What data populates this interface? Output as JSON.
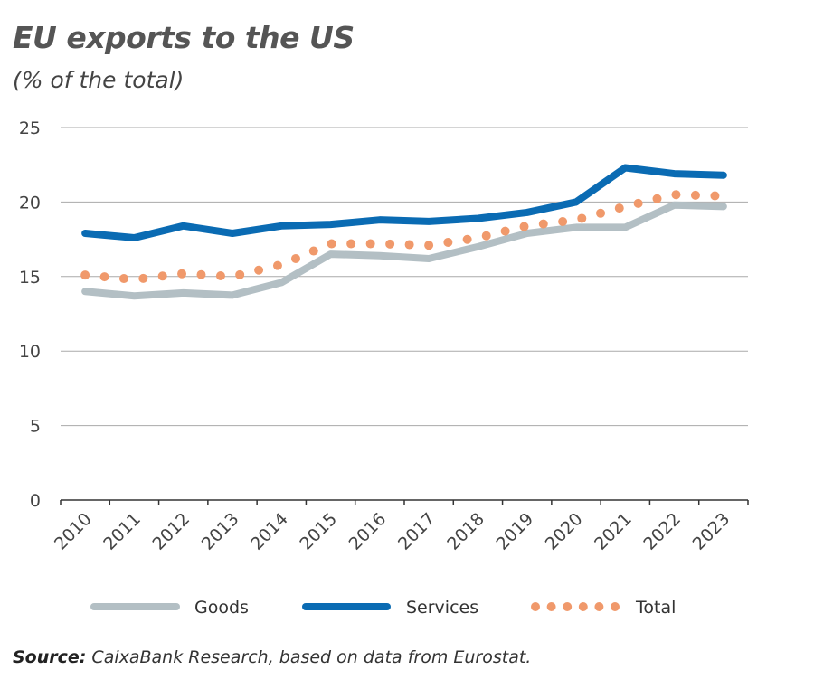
{
  "chart_data": {
    "type": "line",
    "title": "EU exports to the US",
    "subtitle": "(% of the total)",
    "categories": [
      "2010",
      "2011",
      "2012",
      "2013",
      "2014",
      "2015",
      "2016",
      "2017",
      "2018",
      "2019",
      "2020",
      "2021",
      "2022",
      "2023"
    ],
    "ylim": [
      0,
      25
    ],
    "yticks": [
      "0",
      "5",
      "10",
      "15",
      "20",
      "25"
    ],
    "grid": true,
    "legend_placement": "bottom",
    "series": [
      {
        "name": "Goods",
        "color": "#b3bfc4",
        "style": "solid",
        "values": [
          14.0,
          13.7,
          13.9,
          13.75,
          14.6,
          16.5,
          16.4,
          16.2,
          17.0,
          17.9,
          18.3,
          18.3,
          19.8,
          19.7
        ]
      },
      {
        "name": "Services",
        "color": "#0a6bb3",
        "style": "solid",
        "values": [
          17.9,
          17.6,
          18.4,
          17.9,
          18.4,
          18.5,
          18.8,
          18.7,
          18.9,
          19.3,
          20.0,
          22.3,
          21.9,
          21.8
        ]
      },
      {
        "name": "Total",
        "color": "#f0996b",
        "style": "dotted",
        "values": [
          15.1,
          14.8,
          15.2,
          15.0,
          15.8,
          17.2,
          17.2,
          17.1,
          17.6,
          18.4,
          18.8,
          19.7,
          20.5,
          20.4
        ]
      }
    ]
  },
  "source_label": "Source:",
  "source_text": " CaixaBank Research, based on data from Eurostat."
}
